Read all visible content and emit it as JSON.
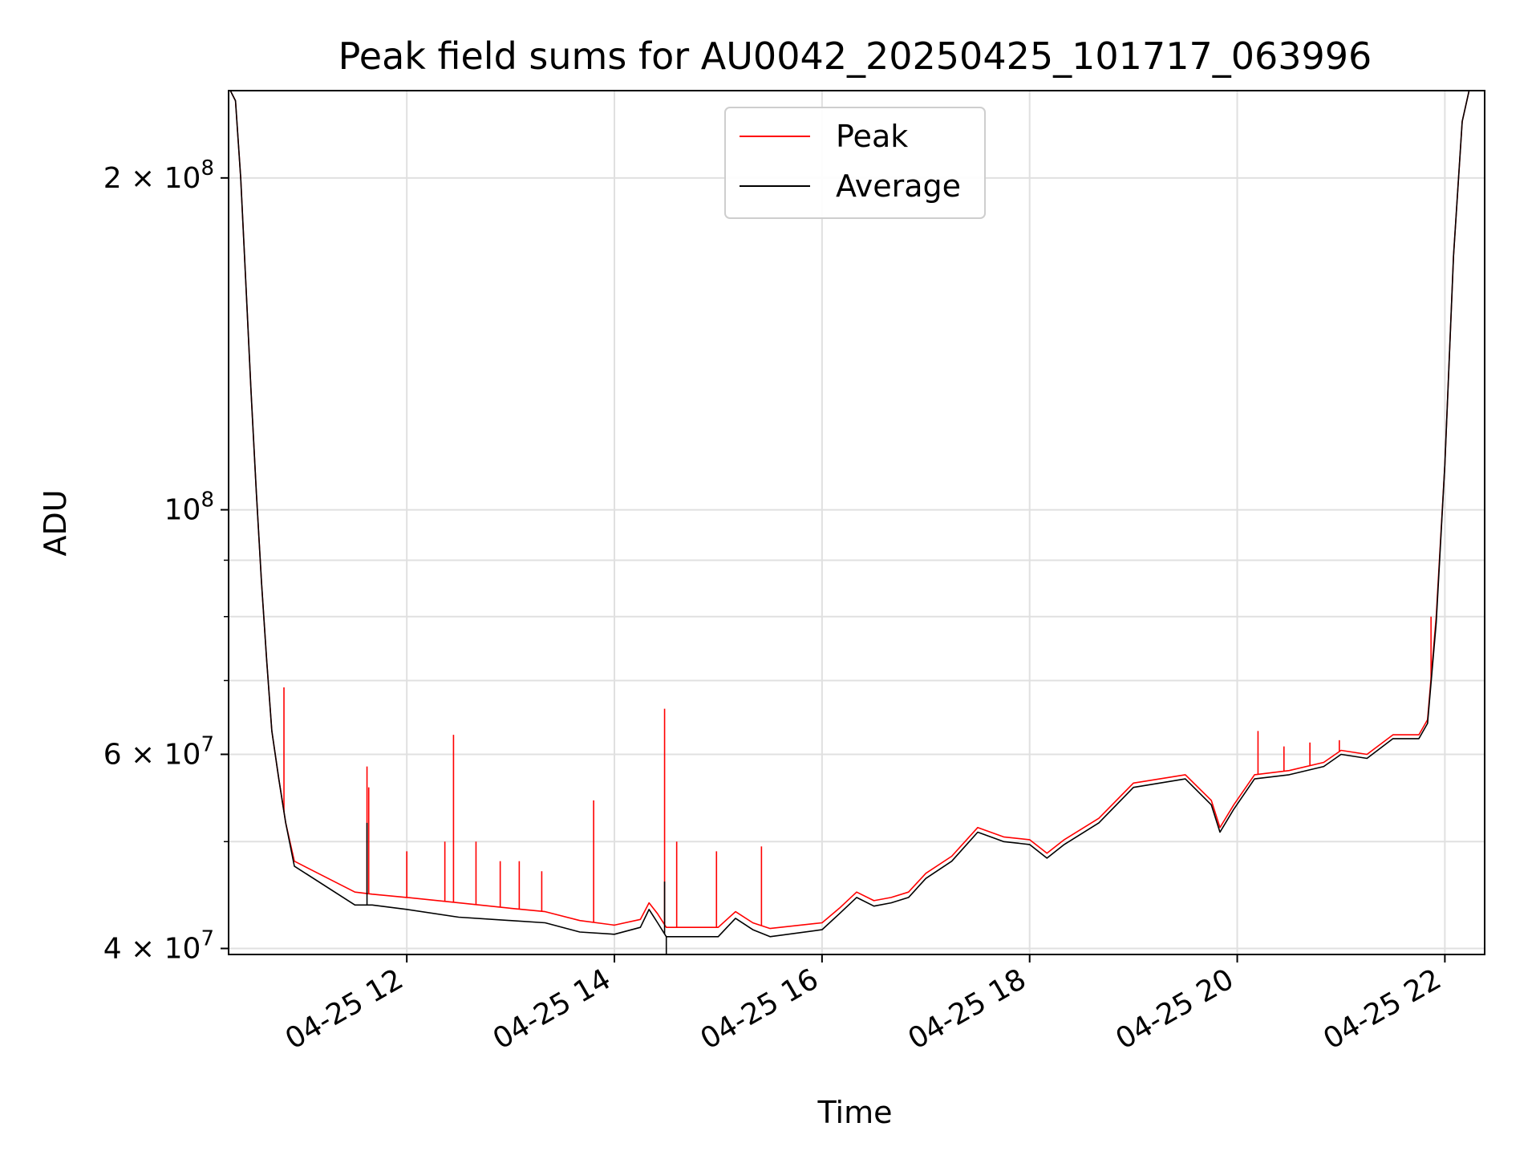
{
  "chart_data": {
    "type": "line",
    "title": "Peak field sums for AU0042_20250425_101717_063996",
    "xlabel": "Time",
    "ylabel": "ADU",
    "y_scale": "log",
    "ylim": [
      39500000,
      240000000
    ],
    "xlim": [
      "2025-04-25T10:17:00",
      "2025-04-25T22:23:00"
    ],
    "grid": true,
    "legend": {
      "placement": "upper center",
      "entries": [
        "Peak",
        "Average"
      ]
    },
    "x_ticks": [
      {
        "value": "2025-04-25T12:00",
        "label": "04-25 12"
      },
      {
        "value": "2025-04-25T14:00",
        "label": "04-25 14"
      },
      {
        "value": "2025-04-25T16:00",
        "label": "04-25 16"
      },
      {
        "value": "2025-04-25T18:00",
        "label": "04-25 18"
      },
      {
        "value": "2025-04-25T20:00",
        "label": "04-25 20"
      },
      {
        "value": "2025-04-25T22:00",
        "label": "04-25 22"
      }
    ],
    "y_major_ticks": [
      {
        "value": 40000000,
        "mantissa": "4",
        "exp": "7"
      },
      {
        "value": 60000000,
        "mantissa": "6",
        "exp": "7"
      },
      {
        "value": 100000000,
        "mantissa": "",
        "exp": "8"
      },
      {
        "value": 200000000,
        "mantissa": "2",
        "exp": "8"
      }
    ],
    "y_minor_ticks": [
      50000000,
      70000000,
      80000000,
      90000000
    ],
    "series": [
      {
        "name": "Peak",
        "color": "#ff0000",
        "points": [
          [
            "2025-04-25T10:18",
            240000000
          ],
          [
            "2025-04-25T10:21",
            235000000
          ],
          [
            "2025-04-25T10:24",
            200000000
          ],
          [
            "2025-04-25T10:27",
            160000000
          ],
          [
            "2025-04-25T10:30",
            128000000
          ],
          [
            "2025-04-25T10:33",
            104000000
          ],
          [
            "2025-04-25T10:36",
            86000000
          ],
          [
            "2025-04-25T10:39",
            73000000
          ],
          [
            "2025-04-25T10:42",
            63000000
          ],
          [
            "2025-04-25T10:46",
            57000000
          ],
          [
            "2025-04-25T10:50",
            52000000
          ],
          [
            "2025-04-25T10:55",
            48000000
          ],
          [
            "2025-04-25T11:30",
            45000000
          ],
          [
            "2025-04-25T11:40",
            44800000
          ],
          [
            "2025-04-25T12:00",
            44500000
          ],
          [
            "2025-04-25T12:30",
            44000000
          ],
          [
            "2025-04-25T13:00",
            43500000
          ],
          [
            "2025-04-25T13:20",
            43200000
          ],
          [
            "2025-04-25T13:40",
            42400000
          ],
          [
            "2025-04-25T14:00",
            42000000
          ],
          [
            "2025-04-25T14:15",
            42500000
          ],
          [
            "2025-04-25T14:20",
            44000000
          ],
          [
            "2025-04-25T14:25",
            43000000
          ],
          [
            "2025-04-25T14:30",
            41800000
          ],
          [
            "2025-04-25T15:00",
            41800000
          ],
          [
            "2025-04-25T15:10",
            43200000
          ],
          [
            "2025-04-25T15:20",
            42200000
          ],
          [
            "2025-04-25T15:30",
            41700000
          ],
          [
            "2025-04-25T16:00",
            42200000
          ],
          [
            "2025-04-25T16:10",
            43500000
          ],
          [
            "2025-04-25T16:20",
            45000000
          ],
          [
            "2025-04-25T16:30",
            44200000
          ],
          [
            "2025-04-25T16:40",
            44500000
          ],
          [
            "2025-04-25T16:50",
            45000000
          ],
          [
            "2025-04-25T17:00",
            46800000
          ],
          [
            "2025-04-25T17:15",
            48500000
          ],
          [
            "2025-04-25T17:30",
            51500000
          ],
          [
            "2025-04-25T17:45",
            50500000
          ],
          [
            "2025-04-25T18:00",
            50200000
          ],
          [
            "2025-04-25T18:10",
            48800000
          ],
          [
            "2025-04-25T18:20",
            50200000
          ],
          [
            "2025-04-25T18:40",
            52500000
          ],
          [
            "2025-04-25T19:00",
            56500000
          ],
          [
            "2025-04-25T19:30",
            57500000
          ],
          [
            "2025-04-25T19:45",
            54500000
          ],
          [
            "2025-04-25T19:50",
            51500000
          ],
          [
            "2025-04-25T19:58",
            54000000
          ],
          [
            "2025-04-25T20:10",
            57500000
          ],
          [
            "2025-04-25T20:30",
            58000000
          ],
          [
            "2025-04-25T20:50",
            59000000
          ],
          [
            "2025-04-25T21:00",
            60500000
          ],
          [
            "2025-04-25T21:15",
            60000000
          ],
          [
            "2025-04-25T21:30",
            62500000
          ],
          [
            "2025-04-25T21:45",
            62500000
          ],
          [
            "2025-04-25T21:50",
            64500000
          ],
          [
            "2025-04-25T21:55",
            80000000
          ],
          [
            "2025-04-25T22:00",
            110000000
          ],
          [
            "2025-04-25T22:05",
            170000000
          ],
          [
            "2025-04-25T22:10",
            225000000
          ],
          [
            "2025-04-25T22:14",
            240000000
          ]
        ],
        "spikes": [
          [
            "2025-04-25T10:49",
            69000000
          ],
          [
            "2025-04-25T11:37",
            58500000
          ],
          [
            "2025-04-25T11:38",
            56000000
          ],
          [
            "2025-04-25T12:00",
            49000000
          ],
          [
            "2025-04-25T12:22",
            50000000
          ],
          [
            "2025-04-25T12:27",
            62500000
          ],
          [
            "2025-04-25T12:40",
            50000000
          ],
          [
            "2025-04-25T12:54",
            48000000
          ],
          [
            "2025-04-25T13:05",
            48000000
          ],
          [
            "2025-04-25T13:18",
            47000000
          ],
          [
            "2025-04-25T13:48",
            54500000
          ],
          [
            "2025-04-25T14:29",
            66000000
          ],
          [
            "2025-04-25T14:36",
            50000000
          ],
          [
            "2025-04-25T14:59",
            49000000
          ],
          [
            "2025-04-25T15:25",
            49500000
          ],
          [
            "2025-04-25T20:12",
            63000000
          ],
          [
            "2025-04-25T20:27",
            61000000
          ],
          [
            "2025-04-25T20:42",
            61500000
          ],
          [
            "2025-04-25T20:59",
            61800000
          ],
          [
            "2025-04-25T21:52",
            80000000
          ]
        ]
      },
      {
        "name": "Average",
        "color": "#000000",
        "points": [
          [
            "2025-04-25T10:18",
            240000000
          ],
          [
            "2025-04-25T10:21",
            235000000
          ],
          [
            "2025-04-25T10:24",
            200000000
          ],
          [
            "2025-04-25T10:27",
            160000000
          ],
          [
            "2025-04-25T10:30",
            128000000
          ],
          [
            "2025-04-25T10:33",
            104000000
          ],
          [
            "2025-04-25T10:36",
            86000000
          ],
          [
            "2025-04-25T10:39",
            73000000
          ],
          [
            "2025-04-25T10:42",
            63000000
          ],
          [
            "2025-04-25T10:46",
            57000000
          ],
          [
            "2025-04-25T10:50",
            52000000
          ],
          [
            "2025-04-25T10:55",
            47500000
          ],
          [
            "2025-04-25T11:30",
            43800000
          ],
          [
            "2025-04-25T11:40",
            43800000
          ],
          [
            "2025-04-25T12:00",
            43400000
          ],
          [
            "2025-04-25T12:30",
            42700000
          ],
          [
            "2025-04-25T13:00",
            42400000
          ],
          [
            "2025-04-25T13:20",
            42200000
          ],
          [
            "2025-04-25T13:40",
            41400000
          ],
          [
            "2025-04-25T14:00",
            41200000
          ],
          [
            "2025-04-25T14:15",
            41800000
          ],
          [
            "2025-04-25T14:20",
            43400000
          ],
          [
            "2025-04-25T14:25",
            42200000
          ],
          [
            "2025-04-25T14:30",
            41000000
          ],
          [
            "2025-04-25T15:00",
            41000000
          ],
          [
            "2025-04-25T15:10",
            42600000
          ],
          [
            "2025-04-25T15:20",
            41600000
          ],
          [
            "2025-04-25T15:30",
            41000000
          ],
          [
            "2025-04-25T16:00",
            41600000
          ],
          [
            "2025-04-25T16:10",
            43000000
          ],
          [
            "2025-04-25T16:20",
            44500000
          ],
          [
            "2025-04-25T16:30",
            43700000
          ],
          [
            "2025-04-25T16:40",
            44000000
          ],
          [
            "2025-04-25T16:50",
            44500000
          ],
          [
            "2025-04-25T17:00",
            46300000
          ],
          [
            "2025-04-25T17:15",
            48000000
          ],
          [
            "2025-04-25T17:30",
            51000000
          ],
          [
            "2025-04-25T17:45",
            50000000
          ],
          [
            "2025-04-25T18:00",
            49700000
          ],
          [
            "2025-04-25T18:10",
            48300000
          ],
          [
            "2025-04-25T18:20",
            49700000
          ],
          [
            "2025-04-25T18:40",
            52000000
          ],
          [
            "2025-04-25T19:00",
            56000000
          ],
          [
            "2025-04-25T19:30",
            57000000
          ],
          [
            "2025-04-25T19:45",
            54000000
          ],
          [
            "2025-04-25T19:50",
            51000000
          ],
          [
            "2025-04-25T19:58",
            53500000
          ],
          [
            "2025-04-25T20:10",
            57000000
          ],
          [
            "2025-04-25T20:30",
            57500000
          ],
          [
            "2025-04-25T20:50",
            58500000
          ],
          [
            "2025-04-25T21:00",
            60000000
          ],
          [
            "2025-04-25T21:15",
            59500000
          ],
          [
            "2025-04-25T21:30",
            62000000
          ],
          [
            "2025-04-25T21:45",
            62000000
          ],
          [
            "2025-04-25T21:50",
            64000000
          ],
          [
            "2025-04-25T21:55",
            79000000
          ],
          [
            "2025-04-25T22:00",
            110000000
          ],
          [
            "2025-04-25T22:05",
            170000000
          ],
          [
            "2025-04-25T22:10",
            225000000
          ],
          [
            "2025-04-25T22:14",
            240000000
          ]
        ],
        "spikes": [
          [
            "2025-04-25T11:37",
            52000000
          ],
          [
            "2025-04-25T14:29",
            46000000
          ],
          [
            "2025-04-25T14:30",
            39500000
          ]
        ]
      }
    ]
  }
}
